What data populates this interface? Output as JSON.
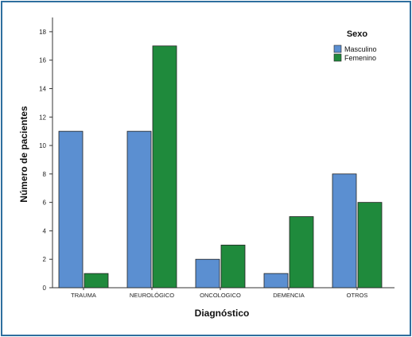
{
  "chart_data": {
    "type": "bar",
    "categories": [
      "TRAUMA",
      "NEUROLÓGICO",
      "ONCOLOGICO",
      "DEMENCIA",
      "OTROS"
    ],
    "series": [
      {
        "name": "Masculino",
        "values": [
          11,
          11,
          2,
          1,
          8
        ],
        "color": "#5b8fd1"
      },
      {
        "name": "Femenino",
        "values": [
          1,
          17,
          3,
          5,
          6
        ],
        "color": "#1f8a3c"
      }
    ],
    "xlabel": "Diagnóstico",
    "ylabel": "Número de pacientes",
    "ylim": [
      0,
      19
    ],
    "yticks": [
      0,
      2,
      4,
      6,
      8,
      10,
      12,
      14,
      16,
      18
    ],
    "legend": {
      "title": "Sexo",
      "placement": "top-right"
    },
    "grid": false
  }
}
